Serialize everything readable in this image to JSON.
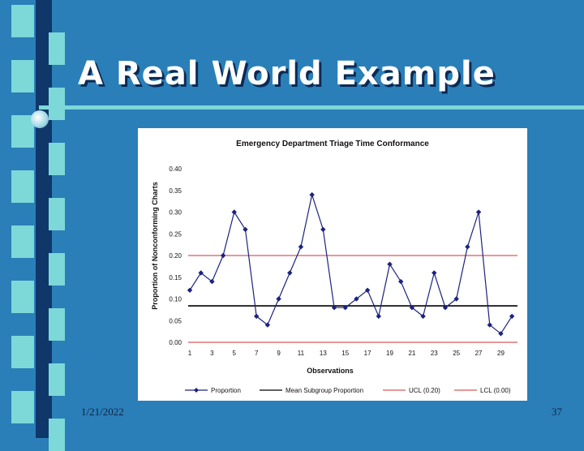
{
  "slide": {
    "title": "A Real World Example",
    "date": "1/21/2022",
    "page_number": "37"
  },
  "colors": {
    "background": "#2a7fb8",
    "accent": "#7dd8d8",
    "series": "#1a237e",
    "mean": "#000000",
    "limits": "#d32f2f"
  },
  "chart_data": {
    "type": "line",
    "title": "Emergency Department Triage Time Conformance",
    "xlabel": "Observations",
    "ylabel": "Proportion of Nonconforming Charts",
    "x": [
      1,
      2,
      3,
      4,
      5,
      6,
      7,
      8,
      9,
      10,
      11,
      12,
      13,
      14,
      15,
      16,
      17,
      18,
      19,
      20,
      21,
      22,
      23,
      24,
      25,
      26,
      27,
      28,
      29,
      30
    ],
    "x_ticks": [
      "1",
      "3",
      "5",
      "7",
      "9",
      "11",
      "13",
      "15",
      "17",
      "19",
      "21",
      "23",
      "25",
      "27",
      "29"
    ],
    "y_ticks": [
      "0.00",
      "0.05",
      "0.10",
      "0.15",
      "0.20",
      "0.25",
      "0.30",
      "0.35",
      "0.40"
    ],
    "ylim": [
      0,
      0.4
    ],
    "grid": false,
    "legend_position": "bottom",
    "series": [
      {
        "name": "Proportion",
        "values": [
          0.12,
          0.16,
          0.14,
          0.2,
          0.3,
          0.26,
          0.06,
          0.04,
          0.1,
          0.16,
          0.22,
          0.34,
          0.26,
          0.08,
          0.08,
          0.1,
          0.12,
          0.06,
          0.18,
          0.14,
          0.08,
          0.06,
          0.16,
          0.08,
          0.1,
          0.22,
          0.3,
          0.04,
          0.02,
          0.06
        ]
      }
    ],
    "reference_lines": [
      {
        "name": "Mean Subgroup Proportion",
        "value": 0.084
      },
      {
        "name": "UCL (0.20)",
        "value": 0.2
      },
      {
        "name": "LCL (0.00)",
        "value": 0.0
      }
    ]
  }
}
